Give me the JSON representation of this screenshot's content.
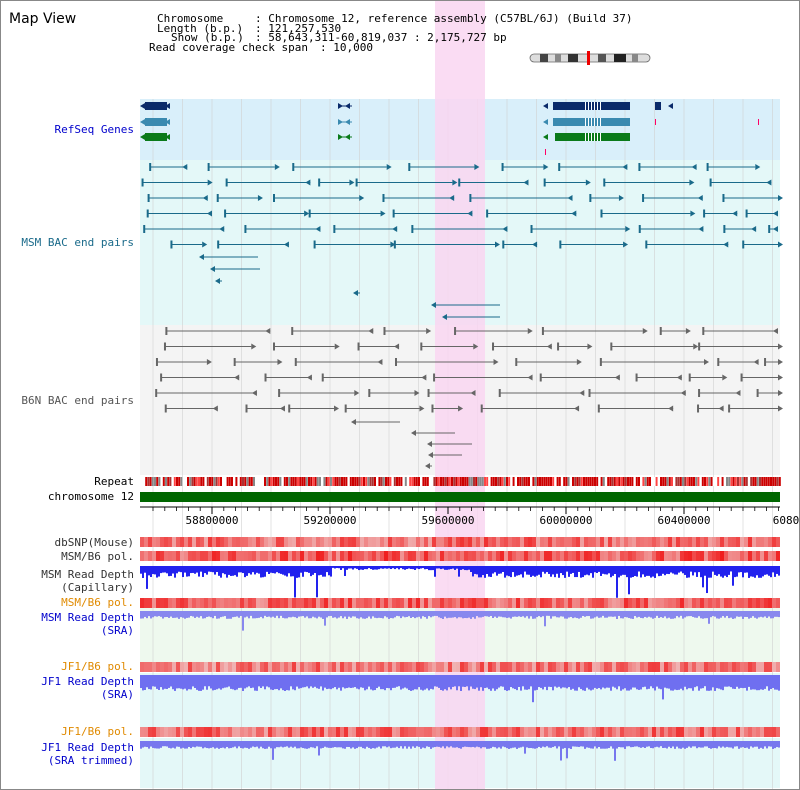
{
  "title": "Map View",
  "info": {
    "chromosome_key": "Chromosome",
    "chromosome_value": ": Chromosome 12, reference assembly (C57BL/6J) (Build 37)",
    "length_key": "Length (b.p.)",
    "length_value": ": 121,257,530",
    "show_key": "Show (b.p.)",
    "show_value": ": 58,643,311-60,819,037 : 2,175,727 bp",
    "read_check_key": "Read coverage check span",
    "read_check_value": ": 10,000"
  },
  "tracks": {
    "refseq": "RefSeq Genes",
    "msm_bac": "MSM BAC end pairs",
    "b6n_bac": "B6N BAC end pairs",
    "repeat": "Repeat",
    "chromosome": "chromosome 12",
    "dbsnp": "dbSNP(Mouse)",
    "msm_b6_pol_1": "MSM/B6 pol.",
    "msm_read_cap_1": "MSM Read Depth",
    "msm_read_cap_2": "(Capillary)",
    "msm_b6_pol_2": "MSM/B6 pol.",
    "msm_read_sra_1": "MSM Read Depth",
    "msm_read_sra_2": "(SRA)",
    "jf1_b6_pol_1": "JF1/B6 pol.",
    "jf1_read_sra_1": "JF1 Read Depth",
    "jf1_read_sra_2": "(SRA)",
    "jf1_b6_pol_2": "JF1/B6 pol.",
    "jf1_read_trim_1": "JF1 Read Depth",
    "jf1_read_trim_2": "(SRA trimmed)"
  },
  "axis": {
    "ticks": [
      "58800000",
      "59200000",
      "59600000",
      "60000000",
      "60400000",
      "6080"
    ]
  },
  "colors": {
    "refseq_bg": "#d9effa",
    "msm_bg": "#e4f8f8",
    "b6n_bg": "#f2f2f2",
    "highlight": "#f9d6f1",
    "refseq_label": "#0000cc",
    "msm_label": "#1a6a8a",
    "b6n_label": "#555555",
    "orange_label": "#e08a00",
    "blue_label": "#0000cc",
    "chromosome_green": "#006600",
    "depth_blue": "#2222ee"
  }
}
